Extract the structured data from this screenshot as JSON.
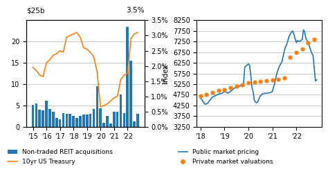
{
  "chart_data": [
    {
      "type": "bar",
      "categories": [
        "'15",
        null,
        null,
        null,
        "'16",
        null,
        null,
        null,
        "'17",
        null,
        null,
        null,
        "'18",
        null,
        null,
        null,
        "'19",
        null,
        null,
        null,
        "'20",
        null,
        null,
        null,
        "'21",
        null,
        null,
        null,
        "'22",
        null,
        null,
        null
      ],
      "ylabel": "$25b",
      "y2label": "3.5%",
      "ylim": [
        0,
        25
      ],
      "yticks": [
        0,
        5,
        10,
        15,
        20
      ],
      "y2lim": [
        0.0,
        3.5
      ],
      "y2ticks": [
        {
          "value": 0.0,
          "label": "0.0%"
        },
        {
          "value": 0.5,
          "label": "0.5%"
        },
        {
          "value": 1.0,
          "label": "1.0%"
        },
        {
          "value": 1.5,
          "label": "1.5%"
        },
        {
          "value": 2.0,
          "label": "2.0%"
        },
        {
          "value": 2.5,
          "label": "2.5%"
        },
        {
          "value": 3.0,
          "label": "3.0%"
        },
        {
          "value": 3.5,
          "label": "3.5%"
        }
      ],
      "grid": "y",
      "legend": "lower left",
      "series": [
        {
          "name": "Non-traded REIT acquisitions",
          "type": "bar",
          "values": [
            5.2,
            5.5,
            4.0,
            3.8,
            6.1,
            4.2,
            3.5,
            2.0,
            1.8,
            3.2,
            3.0,
            3.0,
            2.5,
            2.0,
            2.6,
            2.8,
            2.8,
            3.0,
            4.2,
            9.5,
            4.3,
            1.0,
            2.5,
            0.8,
            3.5,
            3.5,
            7.5,
            3.2,
            23.5,
            15.5,
            1.2,
            3.0
          ]
        },
        {
          "name": "10yr US Treasury",
          "type": "line",
          "axis": "y2",
          "values": [
            1.95,
            1.85,
            1.7,
            1.65,
            2.1,
            2.2,
            2.35,
            2.4,
            2.5,
            2.45,
            2.95,
            3.0,
            3.05,
            3.1,
            2.95,
            2.6,
            2.55,
            2.45,
            2.3,
            1.8,
            0.65,
            0.7,
            0.75,
            0.85,
            0.95,
            1.0,
            1.55,
            1.7,
            1.75,
            2.9,
            3.05,
            3.1
          ]
        }
      ]
    },
    {
      "type": "line",
      "ylabel": "Index",
      "xlim": [
        2017.85,
        2023.05
      ],
      "xticks": [
        {
          "value": 2018.0,
          "label": "'18"
        },
        {
          "value": 2019.0,
          "label": "'19"
        },
        {
          "value": 2020.0,
          "label": "'20"
        },
        {
          "value": 2021.0,
          "label": "'21"
        },
        {
          "value": 2022.0,
          "label": "'22"
        }
      ],
      "ylim": [
        3250,
        8250
      ],
      "yticks": [
        3250,
        3750,
        4250,
        4750,
        5250,
        5750,
        6250,
        6750,
        7250,
        7750,
        8250
      ],
      "grid": "y",
      "legend": "lower left",
      "series": [
        {
          "name": "Public market pricing",
          "type": "line",
          "x": [
            2018.0,
            2018.05,
            2018.1,
            2018.2,
            2018.3,
            2018.4,
            2018.5,
            2018.6,
            2018.7,
            2018.8,
            2018.9,
            2019.0,
            2019.1,
            2019.15,
            2019.2,
            2019.3,
            2019.4,
            2019.5,
            2019.6,
            2019.7,
            2019.8,
            2019.85,
            2019.9,
            2020.0,
            2020.05,
            2020.1,
            2020.15,
            2020.2,
            2020.25,
            2020.3,
            2020.35,
            2020.4,
            2020.5,
            2020.6,
            2020.7,
            2020.8,
            2020.9,
            2021.0,
            2021.1,
            2021.2,
            2021.3,
            2021.4,
            2021.5,
            2021.55,
            2021.6,
            2021.65,
            2021.7,
            2021.75,
            2021.8,
            2021.85,
            2021.9,
            2022.0,
            2022.05,
            2022.1,
            2022.2,
            2022.25,
            2022.3,
            2022.35,
            2022.4,
            2022.5,
            2022.6,
            2022.65,
            2022.7,
            2022.8,
            2022.85
          ],
          "values": [
            4600,
            4550,
            4450,
            4300,
            4350,
            4500,
            4650,
            4700,
            4750,
            4800,
            4820,
            4900,
            4870,
            4820,
            4870,
            4950,
            5050,
            5100,
            5150,
            5200,
            5250,
            6050,
            6100,
            6200,
            6150,
            5700,
            5100,
            4900,
            4500,
            4400,
            4380,
            4430,
            4700,
            4800,
            4820,
            4830,
            4850,
            4900,
            5300,
            5800,
            6100,
            6300,
            6800,
            7000,
            7100,
            7300,
            7500,
            7600,
            7700,
            7750,
            7600,
            7200,
            7300,
            7250,
            7300,
            7350,
            7800,
            7700,
            7400,
            7200,
            6850,
            6700,
            6600,
            5400,
            5450
          ]
        },
        {
          "name": "Private market valuations",
          "type": "scatter",
          "marker": "o",
          "x": [
            2018.0,
            2018.25,
            2018.5,
            2018.75,
            2019.0,
            2019.25,
            2019.5,
            2019.75,
            2020.0,
            2020.25,
            2020.5,
            2020.75,
            2021.0,
            2021.25,
            2021.5,
            2021.75,
            2022.0,
            2022.25,
            2022.5,
            2022.75
          ],
          "values": [
            4700,
            4780,
            4860,
            4950,
            5000,
            5080,
            5150,
            5220,
            5300,
            5340,
            5380,
            5420,
            5450,
            5480,
            5530,
            6500,
            6750,
            6900,
            7200,
            7350
          ]
        }
      ]
    }
  ]
}
